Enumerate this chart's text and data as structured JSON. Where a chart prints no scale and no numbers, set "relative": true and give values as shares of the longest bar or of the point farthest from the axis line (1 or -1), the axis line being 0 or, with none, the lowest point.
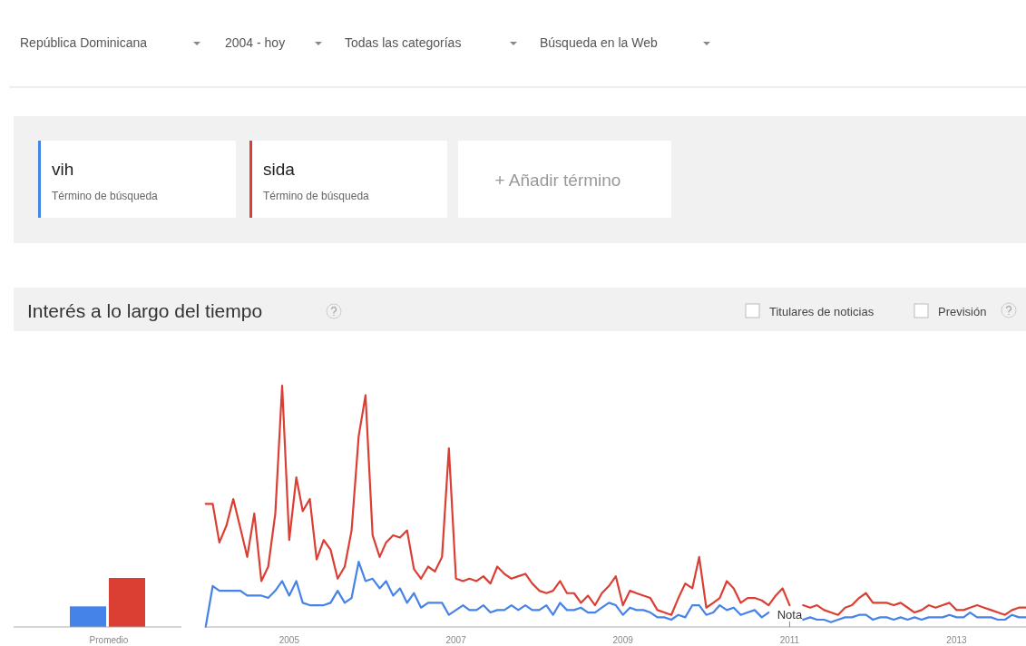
{
  "chart_data": [
    {
      "type": "other",
      "annotations": [
        "República Dominicana",
        "2004 - hoy",
        "Todas las categorías",
        "Búsqueda en la Web",
        "Término de búsqueda",
        "Término de búsqueda",
        "+ Añadir término",
        "Titulares de noticias",
        "Previsión",
        "vih",
        "sida"
      ]
    },
    {
      "type": "bar",
      "categories": [
        "Promedio"
      ],
      "relative": true,
      "tick_labels": "x",
      "series": [
        {
          "color": "#4683e8",
          "values": [
            0.42
          ]
        },
        {
          "color": "#db3f34",
          "values": [
            1
          ]
        }
      ]
    },
    {
      "type": "line",
      "title": "Interés a lo largo del tiempo",
      "relative": true,
      "tick_labels": "x",
      "xlim": [
        "2004-01",
        "2013-11"
      ],
      "xticks": [
        "2005",
        "2007",
        "2009",
        "2011",
        "2013"
      ],
      "annotations": [
        "Nota"
      ],
      "x": [
        "2004-01",
        "2004-02",
        "2004-03",
        "2004-04",
        "2004-05",
        "2004-06",
        "2004-07",
        "2004-08",
        "2004-09",
        "2004-10",
        "2004-11",
        "2004-12",
        "2005-01",
        "2005-02",
        "2005-03",
        "2005-04",
        "2005-05",
        "2005-06",
        "2005-07",
        "2005-08",
        "2005-09",
        "2005-10",
        "2005-11",
        "2005-12",
        "2006-01",
        "2006-02",
        "2006-03",
        "2006-04",
        "2006-05",
        "2006-06",
        "2006-07",
        "2006-08",
        "2006-09",
        "2006-10",
        "2006-11",
        "2006-12",
        "2007-01",
        "2007-02",
        "2007-03",
        "2007-04",
        "2007-05",
        "2007-06",
        "2007-07",
        "2007-08",
        "2007-09",
        "2007-10",
        "2007-11",
        "2007-12",
        "2008-01",
        "2008-02",
        "2008-03",
        "2008-04",
        "2008-05",
        "2008-06",
        "2008-07",
        "2008-08",
        "2008-09",
        "2008-10",
        "2008-11",
        "2008-12",
        "2009-01",
        "2009-02",
        "2009-03",
        "2009-04",
        "2009-05",
        "2009-06",
        "2009-07",
        "2009-08",
        "2009-09",
        "2009-10",
        "2009-11",
        "2009-12",
        "2010-01",
        "2010-02",
        "2010-03",
        "2010-04",
        "2010-05",
        "2010-06",
        "2010-07",
        "2010-08",
        "2010-09",
        "2010-10",
        "2010-11",
        "2010-12",
        "2011-01",
        "2011-02",
        "2011-03",
        "2011-04",
        "2011-05",
        "2011-06",
        "2011-07",
        "2011-08",
        "2011-09",
        "2011-10",
        "2011-11",
        "2011-12",
        "2012-01",
        "2012-02",
        "2012-03",
        "2012-04",
        "2012-05",
        "2012-06",
        "2012-07",
        "2012-08",
        "2012-09",
        "2012-10",
        "2012-11",
        "2012-12",
        "2013-01",
        "2013-02",
        "2013-03",
        "2013-04",
        "2013-05",
        "2013-06",
        "2013-07",
        "2013-08",
        "2013-09",
        "2013-10",
        "2013-11"
      ],
      "series": [
        {
          "color": "#4683e8",
          "values": [
            0.0,
            0.17,
            0.15,
            0.15,
            0.15,
            0.15,
            0.13,
            0.13,
            0.13,
            0.12,
            0.15,
            0.19,
            0.13,
            0.19,
            0.1,
            0.09,
            0.09,
            0.09,
            0.1,
            0.15,
            0.1,
            0.12,
            0.27,
            0.19,
            0.2,
            0.16,
            0.19,
            0.13,
            0.16,
            0.1,
            0.14,
            0.08,
            0.1,
            0.1,
            0.1,
            0.05,
            0.07,
            0.09,
            0.07,
            0.07,
            0.09,
            0.06,
            0.07,
            0.07,
            0.09,
            0.07,
            0.09,
            0.07,
            0.07,
            0.09,
            0.05,
            0.1,
            0.07,
            0.07,
            0.08,
            0.06,
            0.06,
            0.08,
            0.1,
            0.09,
            0.05,
            0.08,
            0.07,
            0.07,
            0.06,
            0.04,
            0.04,
            0.03,
            0.05,
            0.04,
            0.09,
            0.09,
            0.05,
            0.06,
            0.09,
            0.07,
            0.08,
            0.05,
            0.06,
            0.07,
            0.04,
            0.06,
            null,
            null,
            null,
            null,
            0.03,
            0.04,
            0.03,
            0.03,
            0.02,
            0.03,
            0.04,
            0.04,
            0.05,
            0.05,
            0.03,
            0.04,
            0.04,
            0.03,
            0.04,
            0.03,
            0.04,
            0.03,
            0.04,
            0.04,
            0.04,
            0.05,
            0.04,
            0.04,
            0.06,
            0.04,
            0.04,
            0.04,
            0.03,
            0.03,
            0.05,
            0.04,
            0.04
          ]
        },
        {
          "color": "#db3f34",
          "values": [
            0.51,
            0.51,
            0.35,
            0.42,
            0.53,
            0.41,
            0.29,
            0.47,
            0.19,
            0.25,
            0.47,
            1.0,
            0.36,
            0.62,
            0.48,
            0.53,
            0.28,
            0.36,
            0.32,
            0.2,
            0.25,
            0.4,
            0.79,
            0.96,
            0.38,
            0.29,
            0.35,
            0.38,
            0.37,
            0.4,
            0.24,
            0.2,
            0.25,
            0.23,
            0.29,
            0.74,
            0.2,
            0.19,
            0.2,
            0.19,
            0.21,
            0.18,
            0.25,
            0.22,
            0.2,
            0.21,
            0.22,
            0.18,
            0.15,
            0.14,
            0.15,
            0.19,
            0.14,
            0.14,
            0.1,
            0.13,
            0.09,
            0.14,
            0.17,
            0.21,
            0.09,
            0.15,
            0.14,
            0.13,
            0.12,
            0.07,
            0.06,
            0.05,
            0.12,
            0.18,
            0.16,
            0.29,
            0.08,
            0.1,
            0.12,
            0.19,
            0.16,
            0.1,
            0.12,
            0.12,
            0.11,
            0.09,
            0.13,
            0.16,
            0.09,
            null,
            0.09,
            0.08,
            0.09,
            0.07,
            0.06,
            0.05,
            0.08,
            0.09,
            0.12,
            0.14,
            0.1,
            0.1,
            0.1,
            0.09,
            0.1,
            0.08,
            0.06,
            0.07,
            0.09,
            0.08,
            0.09,
            0.1,
            0.07,
            0.07,
            0.08,
            0.09,
            0.08,
            0.07,
            0.06,
            0.05,
            0.07,
            0.08,
            0.08
          ]
        }
      ]
    }
  ]
}
